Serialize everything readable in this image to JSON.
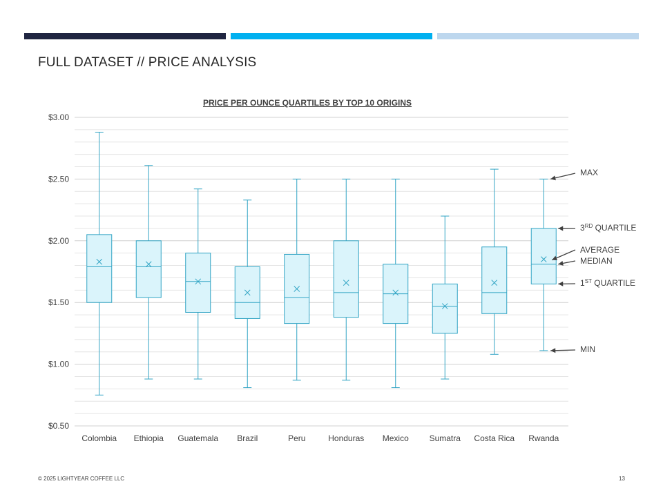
{
  "slide": {
    "title": "FULL DATASET // PRICE ANALYSIS",
    "footer": "© 2025 LIGHTYEAR COFFEE LLC",
    "page_number": "13",
    "band_colors": [
      "#1f2541",
      "#00b0f0",
      "#bdd7ee"
    ]
  },
  "annotations": {
    "max": "MAX",
    "q3_num": "3",
    "q3_sup": "RD",
    "q3_text": "QUARTILE",
    "average": "AVERAGE",
    "median": "MEDIAN",
    "q1_num": "1",
    "q1_sup": "ST",
    "q1_text": "QUARTILE",
    "min": "MIN"
  },
  "chart_data": {
    "type": "boxplot",
    "title": "PRICE PER OUNCE QUARTILES BY TOP 10 ORIGINS",
    "ylim": [
      0.5,
      3.0
    ],
    "yticks": [
      {
        "value": 3.0,
        "label": "$3.00"
      },
      {
        "value": 2.5,
        "label": "$2.50"
      },
      {
        "value": 2.0,
        "label": "$2.00"
      },
      {
        "value": 1.5,
        "label": "$1.50"
      },
      {
        "value": 1.0,
        "label": "$1.00"
      },
      {
        "value": 0.5,
        "label": "$0.50"
      }
    ],
    "grid": true,
    "box_fill": "#daf4fb",
    "box_stroke": "#31a4c4",
    "categories": [
      "Colombia",
      "Ethiopia",
      "Guatemala",
      "Brazil",
      "Peru",
      "Honduras",
      "Mexico",
      "Sumatra",
      "Costa Rica",
      "Rwanda"
    ],
    "min": [
      0.75,
      0.88,
      0.88,
      0.81,
      0.87,
      0.87,
      0.81,
      0.88,
      1.08,
      1.11
    ],
    "q1": [
      1.5,
      1.54,
      1.42,
      1.37,
      1.33,
      1.38,
      1.33,
      1.25,
      1.41,
      1.65
    ],
    "median": [
      1.79,
      1.79,
      1.67,
      1.5,
      1.54,
      1.58,
      1.57,
      1.47,
      1.58,
      1.81
    ],
    "mean": [
      1.83,
      1.81,
      1.67,
      1.58,
      1.61,
      1.66,
      1.58,
      1.47,
      1.66,
      1.85
    ],
    "q3": [
      2.05,
      2.0,
      1.9,
      1.79,
      1.89,
      2.0,
      1.81,
      1.65,
      1.95,
      2.1
    ],
    "max": [
      2.88,
      2.61,
      2.42,
      2.33,
      2.5,
      2.5,
      2.5,
      2.2,
      2.58,
      2.5
    ]
  }
}
